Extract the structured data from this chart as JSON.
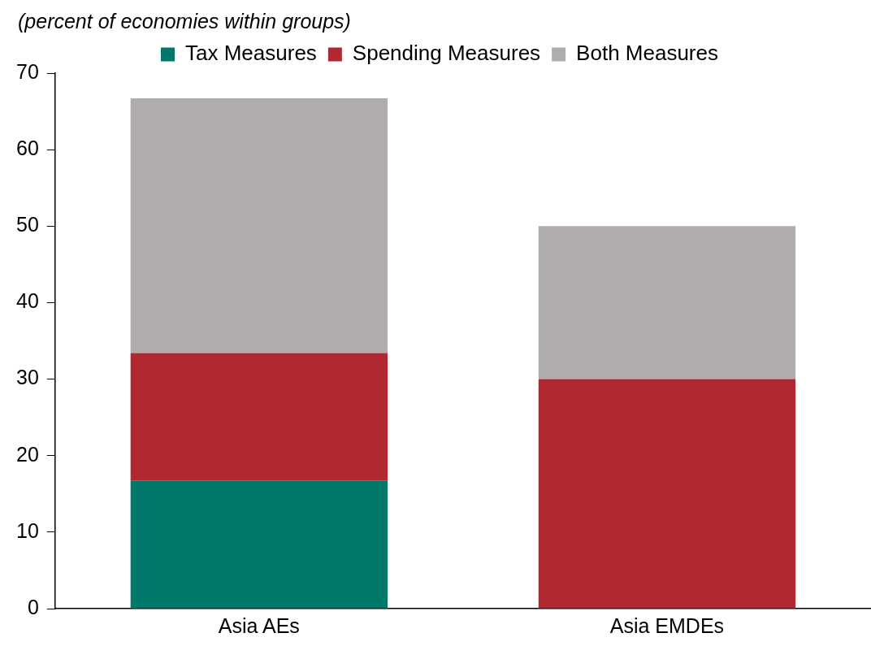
{
  "chart_data": {
    "type": "bar",
    "subtitle": "(percent of economies within groups)",
    "categories": [
      "Asia AEs",
      "Asia EMDEs"
    ],
    "stacked": true,
    "series": [
      {
        "name": "Tax Measures",
        "color": "#00786a",
        "values": [
          16.7,
          0
        ]
      },
      {
        "name": "Spending Measures",
        "color": "#b02830",
        "values": [
          16.7,
          30
        ]
      },
      {
        "name": "Both Measures",
        "color": "#b0acab",
        "values": [
          33.3,
          20
        ]
      }
    ],
    "ylim": [
      0,
      70
    ],
    "yticks": [
      0,
      10,
      20,
      30,
      40,
      50,
      60,
      70
    ],
    "grid": false,
    "legend": "top"
  }
}
